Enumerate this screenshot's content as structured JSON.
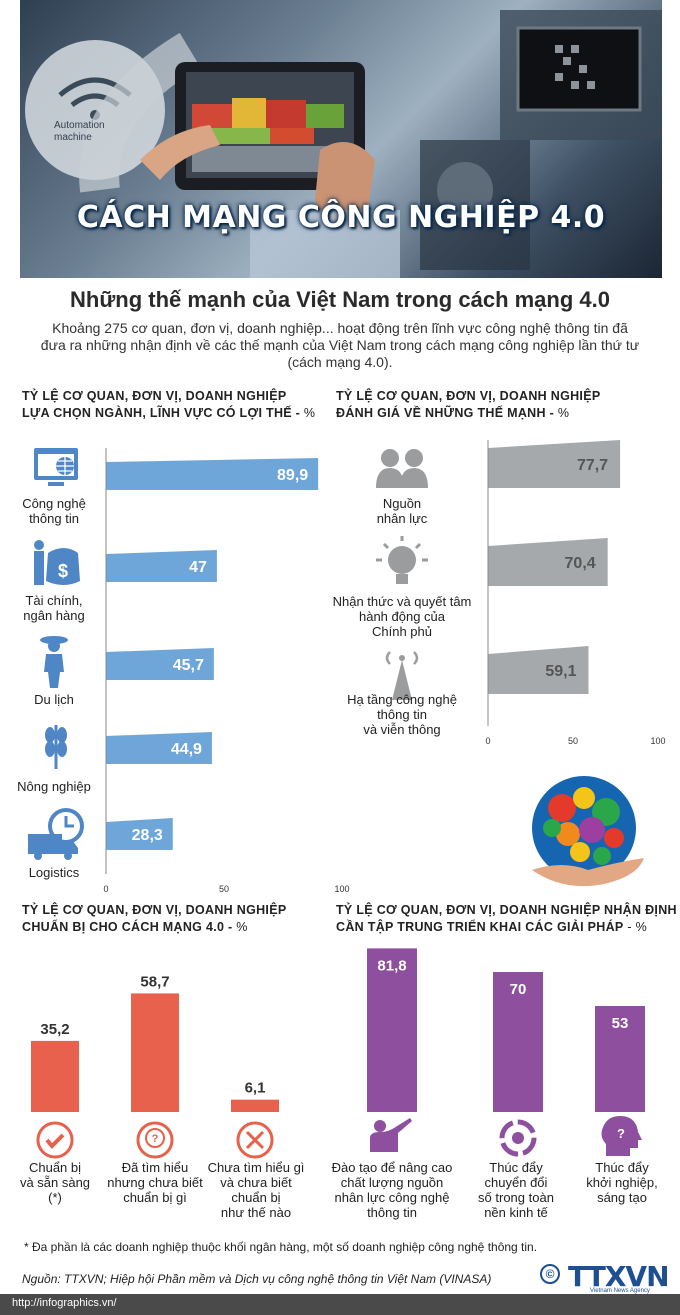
{
  "hero": {
    "title": "CÁCH MẠNG CÔNG NGHIỆP 4.0",
    "automation_label": "Automation machine"
  },
  "subtitle": "Những thế mạnh của Việt Nam trong cách mạng 4.0",
  "intro": "Khoảng 275 cơ quan, đơn vị, doanh nghiệp... hoạt động trên lĩnh vực công nghệ thông tin đã đưa ra những nhận định về các thế mạnh của Việt Nam trong cách mạng công nghiệp lần thứ tư (cách mạng 4.0).",
  "colors": {
    "blue_bar": "#6fa6d9",
    "gray_bar": "#a6a9ab",
    "orange_bar": "#e8614c",
    "purple_bar": "#8e4f9e",
    "blue_icon": "#4f86c6",
    "gray_icon": "#9a9c9e"
  },
  "footnote": "* Đa phần là các doanh nghiệp thuộc khối ngân hàng, một số doanh nghiệp công nghệ thông tin.",
  "source": "Nguồn: TTXVN; Hiệp hội Phần mềm và Dịch vụ công nghệ thông tin Việt Nam (VINASA)",
  "url": "http://infographics.vn/",
  "logo": {
    "copyright": "©",
    "text": "TTXVN",
    "sub": "Vietnam News Agency"
  },
  "chart_data": [
    {
      "id": "advantage_sectors",
      "type": "bar",
      "orientation": "horizontal",
      "title_line1": "TỶ LỆ CƠ QUAN, ĐƠN VỊ, DOANH NGHIỆP",
      "title_line2": "LỰA CHỌN NGÀNH, LĨNH VỰC CÓ LỢI THẾ -",
      "unit": " %",
      "categories": [
        "Công nghệ\nthông tin",
        "Tài chính,\nngân hàng",
        "Du lịch",
        "Nông nghiệp",
        "Logistics"
      ],
      "icons": [
        "computer-globe-icon",
        "finance-money-icon",
        "tourist-icon",
        "wheat-icon",
        "delivery-truck-clock-icon"
      ],
      "values": [
        89.9,
        47,
        45.7,
        44.9,
        28.3
      ],
      "value_labels": [
        "89,9",
        "47",
        "45,7",
        "44,9",
        "28,3"
      ],
      "xlim": [
        0,
        100
      ],
      "ticks": [
        "0",
        "50",
        "100"
      ],
      "tick_values": [
        0,
        50,
        100
      ]
    },
    {
      "id": "strengths",
      "type": "bar",
      "orientation": "horizontal",
      "title_line1": "TỶ LỆ CƠ QUAN, ĐƠN VỊ, DOANH NGHIỆP",
      "title_line2": "ĐÁNH GIÁ VỀ NHỮNG THẾ MẠNH -",
      "unit": " %",
      "categories": [
        "Nguồn\nnhân lực",
        "Nhận thức và quyết tâm\nhành động của\nChính phủ",
        "Hạ tầng công nghệ\nthông tin\nvà viễn thông"
      ],
      "icons": [
        "people-icon",
        "lightbulb-icon",
        "antenna-tower-icon"
      ],
      "values": [
        77.7,
        70.4,
        59.1
      ],
      "value_labels": [
        "77,7",
        "70,4",
        "59,1"
      ],
      "xlim": [
        0,
        100
      ],
      "ticks": [
        "0",
        "50",
        "100"
      ],
      "tick_values": [
        0,
        50,
        100
      ]
    },
    {
      "id": "preparation",
      "type": "bar",
      "orientation": "vertical",
      "title_line1": "TỶ LỆ CƠ QUAN, ĐƠN VỊ, DOANH NGHIỆP",
      "title_line2": "CHUẨN BỊ CHO CÁCH MẠNG 4.0 -",
      "unit": " %",
      "categories": [
        "Chuẩn bị\nvà sẵn sàng\n(*)",
        "Đã tìm hiểu\nnhưng chưa biết\nchuẩn bị gì",
        "Chưa tìm hiểu gì\nvà chưa biết\nchuẩn bị\nnhư thế nào"
      ],
      "icons": [
        "check-circle-icon",
        "question-circle-icon",
        "cross-circle-icon"
      ],
      "values": [
        35.2,
        58.7,
        6.1
      ],
      "value_labels": [
        "35,2",
        "58,7",
        "6,1"
      ],
      "ylim": [
        0,
        100
      ]
    },
    {
      "id": "solutions",
      "type": "bar",
      "orientation": "vertical",
      "title_line1": "TỶ LỆ CƠ QUAN, ĐƠN VỊ, DOANH NGHIỆP NHẬN ĐỊNH",
      "title_line2": "CẦN TẬP TRUNG TRIỂN KHAI CÁC GIẢI PHÁP",
      "unit": "  - %",
      "categories": [
        "Đào tạo để nâng cao\nchất lượng nguồn\nnhân lực công nghệ\nthông tin",
        "Thúc đẩy\nchuyển đổi\nsố trong toàn\nnền kinh tế",
        "Thúc đẩy\nkhởi nghiệp,\nsáng tạo"
      ],
      "icons": [
        "teacher-icon",
        "transform-cycle-icon",
        "head-question-icon"
      ],
      "values": [
        81.8,
        70,
        53
      ],
      "value_labels": [
        "81,8",
        "70",
        "53"
      ],
      "ylim": [
        0,
        100
      ]
    }
  ]
}
